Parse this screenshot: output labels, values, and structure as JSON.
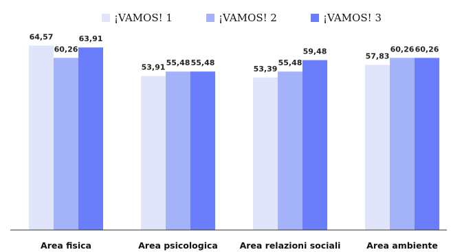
{
  "chart_data": {
    "type": "bar",
    "title": "",
    "xlabel": "",
    "ylabel": "",
    "ylim": [
      0,
      70
    ],
    "grid": false,
    "legend_position": "top",
    "categories": [
      "Area fisica",
      "Area psicologica",
      "Area relazioni sociali",
      "Area ambiente"
    ],
    "series": [
      {
        "name": "¡VAMOS! 1",
        "color": "#e1e5fb",
        "values": [
          64.57,
          53.91,
          53.39,
          57.83
        ],
        "labels": [
          "64,57",
          "53,91",
          "53,39",
          "57,83"
        ]
      },
      {
        "name": "¡VAMOS! 2",
        "color": "#a4b2fa",
        "values": [
          60.26,
          55.48,
          55.48,
          60.26
        ],
        "labels": [
          "60,26",
          "55,48",
          "55,48",
          "60,26"
        ]
      },
      {
        "name": "¡VAMOS! 3",
        "color": "#6a7dfa",
        "values": [
          63.91,
          55.48,
          59.48,
          60.26
        ],
        "labels": [
          "63,91",
          "55,48",
          "59,48",
          "60,26"
        ]
      }
    ]
  }
}
